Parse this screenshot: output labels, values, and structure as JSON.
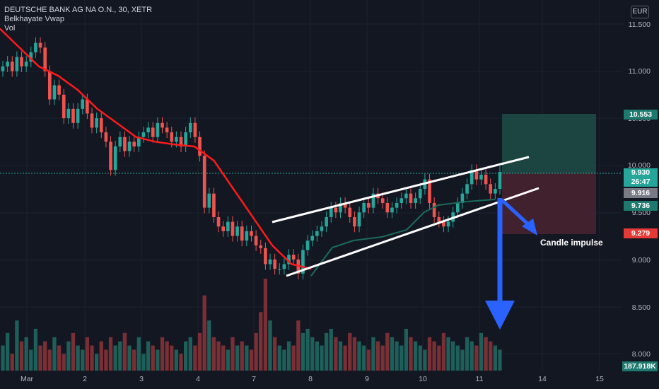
{
  "legend": {
    "symbol": "DEUTSCHE BANK AG NA O.N., 30, XETR",
    "indicator": "Belkhayate Vwap",
    "volume": "Vol"
  },
  "currency": "EUR",
  "price_axis": [
    "11.500",
    "11.000",
    "10.500",
    "10.000",
    "9.500",
    "9.000",
    "8.500",
    "8.000"
  ],
  "time_axis": [
    "Mar",
    "2",
    "3",
    "4",
    "7",
    "8",
    "9",
    "10",
    "11",
    "14",
    "15"
  ],
  "badges": {
    "target": "10.553",
    "current_price": "9.930",
    "countdown": "26:47",
    "vwap": "9.916",
    "vwap_lower": "9.736",
    "stop": "9.279",
    "volume": "187.918K"
  },
  "annotation": "Candle impulse",
  "colors": {
    "background": "#131722",
    "up": "#26a69a",
    "down": "#ef5350",
    "vwap": "#ff0000",
    "channel": "#ffffff",
    "arrow": "#2962ff",
    "target_zone": "#1e4d47",
    "stop_zone": "#4a2330"
  },
  "chart_data": {
    "type": "candlestick",
    "title": "DEUTSCHE BANK AG NA O.N., 30, XETR",
    "ylim": [
      7.9,
      11.65
    ],
    "x_labels": [
      "Mar",
      "2",
      "3",
      "4",
      "7",
      "8",
      "9",
      "10",
      "11",
      "14",
      "15"
    ],
    "closes": [
      11.05,
      11.1,
      11.0,
      11.15,
      11.05,
      11.1,
      11.2,
      11.3,
      11.25,
      11.0,
      10.7,
      10.85,
      10.75,
      10.5,
      10.6,
      10.45,
      10.6,
      10.7,
      10.55,
      10.4,
      10.5,
      10.35,
      10.25,
      9.95,
      10.2,
      10.3,
      10.15,
      10.25,
      10.2,
      10.3,
      10.35,
      10.4,
      10.3,
      10.45,
      10.4,
      10.35,
      10.25,
      10.3,
      10.2,
      10.35,
      10.45,
      10.3,
      10.1,
      9.55,
      9.7,
      9.45,
      9.35,
      9.3,
      9.4,
      9.25,
      9.35,
      9.2,
      9.3,
      9.25,
      9.15,
      9.12,
      8.95,
      9.0,
      8.9,
      8.9,
      8.95,
      9.05,
      9.0,
      8.85,
      9.1,
      9.2,
      9.25,
      9.3,
      9.35,
      9.45,
      9.55,
      9.5,
      9.6,
      9.55,
      9.45,
      9.35,
      9.5,
      9.6,
      9.55,
      9.7,
      9.65,
      9.6,
      9.5,
      9.55,
      9.6,
      9.65,
      9.7,
      9.6,
      9.65,
      9.75,
      9.85,
      9.6,
      9.45,
      9.4,
      9.35,
      9.4,
      9.5,
      9.6,
      9.7,
      9.8,
      9.95,
      9.85,
      9.9,
      9.8,
      9.7,
      9.75,
      9.93
    ],
    "vwap_line_values": [
      11.45,
      11.25,
      11.05,
      10.95,
      10.8,
      10.6,
      10.45,
      10.3,
      10.25,
      10.22,
      10.2,
      10.05,
      9.75,
      9.45,
      9.15,
      8.95,
      8.9
    ],
    "volume_values": [
      30,
      45,
      20,
      60,
      35,
      40,
      25,
      50,
      30,
      35,
      25,
      40,
      30,
      20,
      35,
      45,
      30,
      25,
      40,
      30,
      20,
      35,
      25,
      40,
      30,
      35,
      45,
      30,
      25,
      40,
      20,
      35,
      30,
      25,
      40,
      35,
      30,
      25,
      20,
      35,
      40,
      30,
      45,
      90,
      60,
      40,
      35,
      30,
      25,
      40,
      30,
      35,
      30,
      25,
      45,
      70,
      110,
      60,
      40,
      30,
      25,
      35,
      30,
      60,
      45,
      50,
      40,
      35,
      30,
      45,
      50,
      40,
      35,
      30,
      45,
      40,
      35,
      30,
      25,
      40,
      35,
      30,
      45,
      40,
      35,
      30,
      50,
      40,
      35,
      30,
      25,
      40,
      35,
      30,
      45,
      40,
      35,
      30,
      25,
      40,
      35,
      30,
      45,
      40,
      35,
      30,
      25
    ]
  }
}
